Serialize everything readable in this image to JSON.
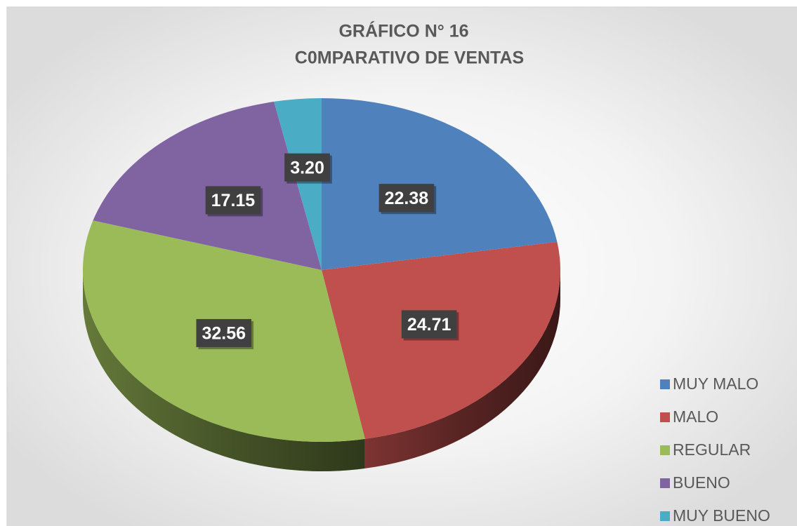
{
  "chart_data": {
    "type": "pie",
    "title": "GRÁFICO N° 16",
    "subtitle": "C0MPARATIVO DE VENTAS",
    "categories": [
      "MUY MALO",
      "MALO",
      "REGULAR",
      "BUENO",
      "MUY BUENO"
    ],
    "values": [
      22.38,
      24.71,
      32.56,
      17.15,
      3.2
    ],
    "value_labels": [
      "22.38",
      "24.71",
      "32.56",
      "17.15",
      "3.20"
    ],
    "colors": [
      "#4f81bd",
      "#c0504d",
      "#9bbb59",
      "#8064a2",
      "#4bacc6"
    ],
    "legend": "bottom-right"
  }
}
